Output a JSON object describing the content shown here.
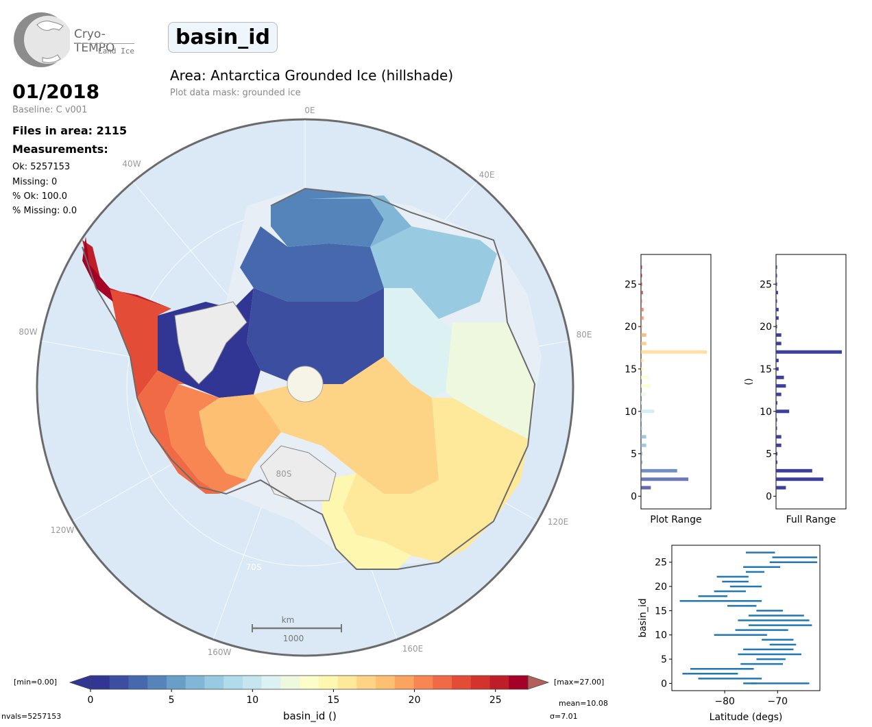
{
  "logo": {
    "brand": "Cryo-TEMPO",
    "sub": "Land Ice"
  },
  "header": {
    "variable": "basin_id",
    "area_title": "Area: Antarctica Grounded Ice (hillshade)",
    "mask_note": "Plot data mask: grounded ice"
  },
  "info": {
    "date": "01/2018",
    "baseline": "Baseline: C v001",
    "files": "Files in area: 2115",
    "measurements_title": "Measurements:",
    "ok": "Ok: 5257153",
    "missing": "Missing: 0",
    "pct_ok": "% Ok: 100.0",
    "pct_missing": "% Missing: 0.0"
  },
  "map": {
    "lon_labels": [
      "0E",
      "40E",
      "80E",
      "120E",
      "160E",
      "160W",
      "120W",
      "80W",
      "40W"
    ],
    "lat_labels": [
      "80S",
      "70S"
    ],
    "scale_unit": "km",
    "scale_value": "1000",
    "colors": {
      "ocean": "#dbe8f5",
      "rim": "#6b6b6b"
    }
  },
  "colorbar": {
    "min_label": "[min=0.00]",
    "max_label": "[max=27.00]",
    "ticks": [
      "0",
      "5",
      "10",
      "15",
      "20",
      "25"
    ],
    "label": "basin_id ()",
    "colors": [
      "#313695",
      "#3b4ea0",
      "#4669ae",
      "#5584bb",
      "#699ec9",
      "#81b6d6",
      "#98cae1",
      "#afdbea",
      "#c6e6ef",
      "#dcf1f2",
      "#eef8df",
      "#fbfdca",
      "#fef7b0",
      "#fee89a",
      "#fdd485",
      "#fdbf71",
      "#fba45f",
      "#f78652",
      "#ef6a45",
      "#e34d37",
      "#d3332c",
      "#be1e27",
      "#a50026"
    ]
  },
  "footer": {
    "nvals": "nvals=5257153",
    "mean": "mean=10.08",
    "sd": "σ=7.01"
  },
  "chart_data": [
    {
      "type": "bar",
      "orientation": "horizontal",
      "xlabel": "Plot Range",
      "ylabel": "",
      "ylim": [
        -1.5,
        28.5
      ],
      "yticks": [
        "0",
        "5",
        "10",
        "15",
        "20",
        "25"
      ],
      "categories": [
        1,
        2,
        3,
        4,
        5,
        6,
        7,
        8,
        9,
        10,
        11,
        12,
        13,
        14,
        15,
        16,
        17,
        18,
        19,
        20,
        21,
        22,
        23,
        24,
        25,
        26,
        27
      ],
      "values": [
        15,
        72,
        55,
        2,
        2,
        8,
        8,
        1,
        1,
        20,
        2,
        8,
        15,
        12,
        4,
        4,
        100,
        8,
        8,
        1,
        4,
        4,
        1,
        3,
        1,
        1,
        1
      ]
    },
    {
      "type": "bar",
      "orientation": "horizontal",
      "xlabel": "Full Range",
      "ylabel": "()",
      "ylim": [
        -1.5,
        28.5
      ],
      "yticks": [
        "0",
        "5",
        "10",
        "15",
        "20",
        "25"
      ],
      "categories": [
        1,
        2,
        3,
        4,
        5,
        6,
        7,
        8,
        9,
        10,
        11,
        12,
        13,
        14,
        15,
        16,
        17,
        18,
        19,
        20,
        21,
        22,
        23,
        24,
        25,
        26,
        27
      ],
      "values": [
        15,
        72,
        55,
        2,
        2,
        8,
        8,
        1,
        1,
        20,
        2,
        8,
        15,
        12,
        4,
        4,
        100,
        8,
        8,
        1,
        4,
        4,
        1,
        3,
        1,
        1,
        1
      ]
    },
    {
      "type": "range",
      "xlabel": "Latitude (degs)",
      "ylabel": "basin_id",
      "xlim": [
        -90,
        -62
      ],
      "ylim": [
        -1.5,
        28.5
      ],
      "xticks": [
        "−80",
        "−70"
      ],
      "yticks": [
        "0",
        "5",
        "10",
        "15",
        "20",
        "25"
      ],
      "ranges": [
        {
          "basin": 0,
          "min": -76.5,
          "max": -74.0
        },
        {
          "basin": 0,
          "min": -75.0,
          "max": -64.0
        },
        {
          "basin": 1,
          "min": -85.0,
          "max": -73.0
        },
        {
          "basin": 2,
          "min": -88.0,
          "max": -77.5
        },
        {
          "basin": 3,
          "min": -86.5,
          "max": -74.5
        },
        {
          "basin": 4,
          "min": -77.0,
          "max": -69.0
        },
        {
          "basin": 5,
          "min": -74.0,
          "max": -68.5
        },
        {
          "basin": 6,
          "min": -77.5,
          "max": -65.5
        },
        {
          "basin": 7,
          "min": -76.5,
          "max": -67.0
        },
        {
          "basin": 8,
          "min": -71.5,
          "max": -66.5
        },
        {
          "basin": 9,
          "min": -73.0,
          "max": -67.0
        },
        {
          "basin": 10,
          "min": -82.0,
          "max": -72.0
        },
        {
          "basin": 11,
          "min": -78.0,
          "max": -68.0
        },
        {
          "basin": 12,
          "min": -75.5,
          "max": -63.5
        },
        {
          "basin": 13,
          "min": -77.5,
          "max": -64.0
        },
        {
          "basin": 14,
          "min": -75.5,
          "max": -65.0
        },
        {
          "basin": 15,
          "min": -74.0,
          "max": -69.0
        },
        {
          "basin": 16,
          "min": -79.5,
          "max": -74.0
        },
        {
          "basin": 17,
          "min": -88.5,
          "max": -73.0
        },
        {
          "basin": 18,
          "min": -85.0,
          "max": -79.5
        },
        {
          "basin": 19,
          "min": -82.0,
          "max": -76.0
        },
        {
          "basin": 20,
          "min": -79.0,
          "max": -73.0
        },
        {
          "basin": 21,
          "min": -80.5,
          "max": -75.5
        },
        {
          "basin": 22,
          "min": -81.5,
          "max": -75.5
        },
        {
          "basin": 23,
          "min": -76.0,
          "max": -72.5
        },
        {
          "basin": 24,
          "min": -76.5,
          "max": -69.5
        },
        {
          "basin": 25,
          "min": -71.5,
          "max": -62.5
        },
        {
          "basin": 26,
          "min": -71.0,
          "max": -62.5
        },
        {
          "basin": 27,
          "min": -76.0,
          "max": -70.5
        }
      ]
    }
  ]
}
